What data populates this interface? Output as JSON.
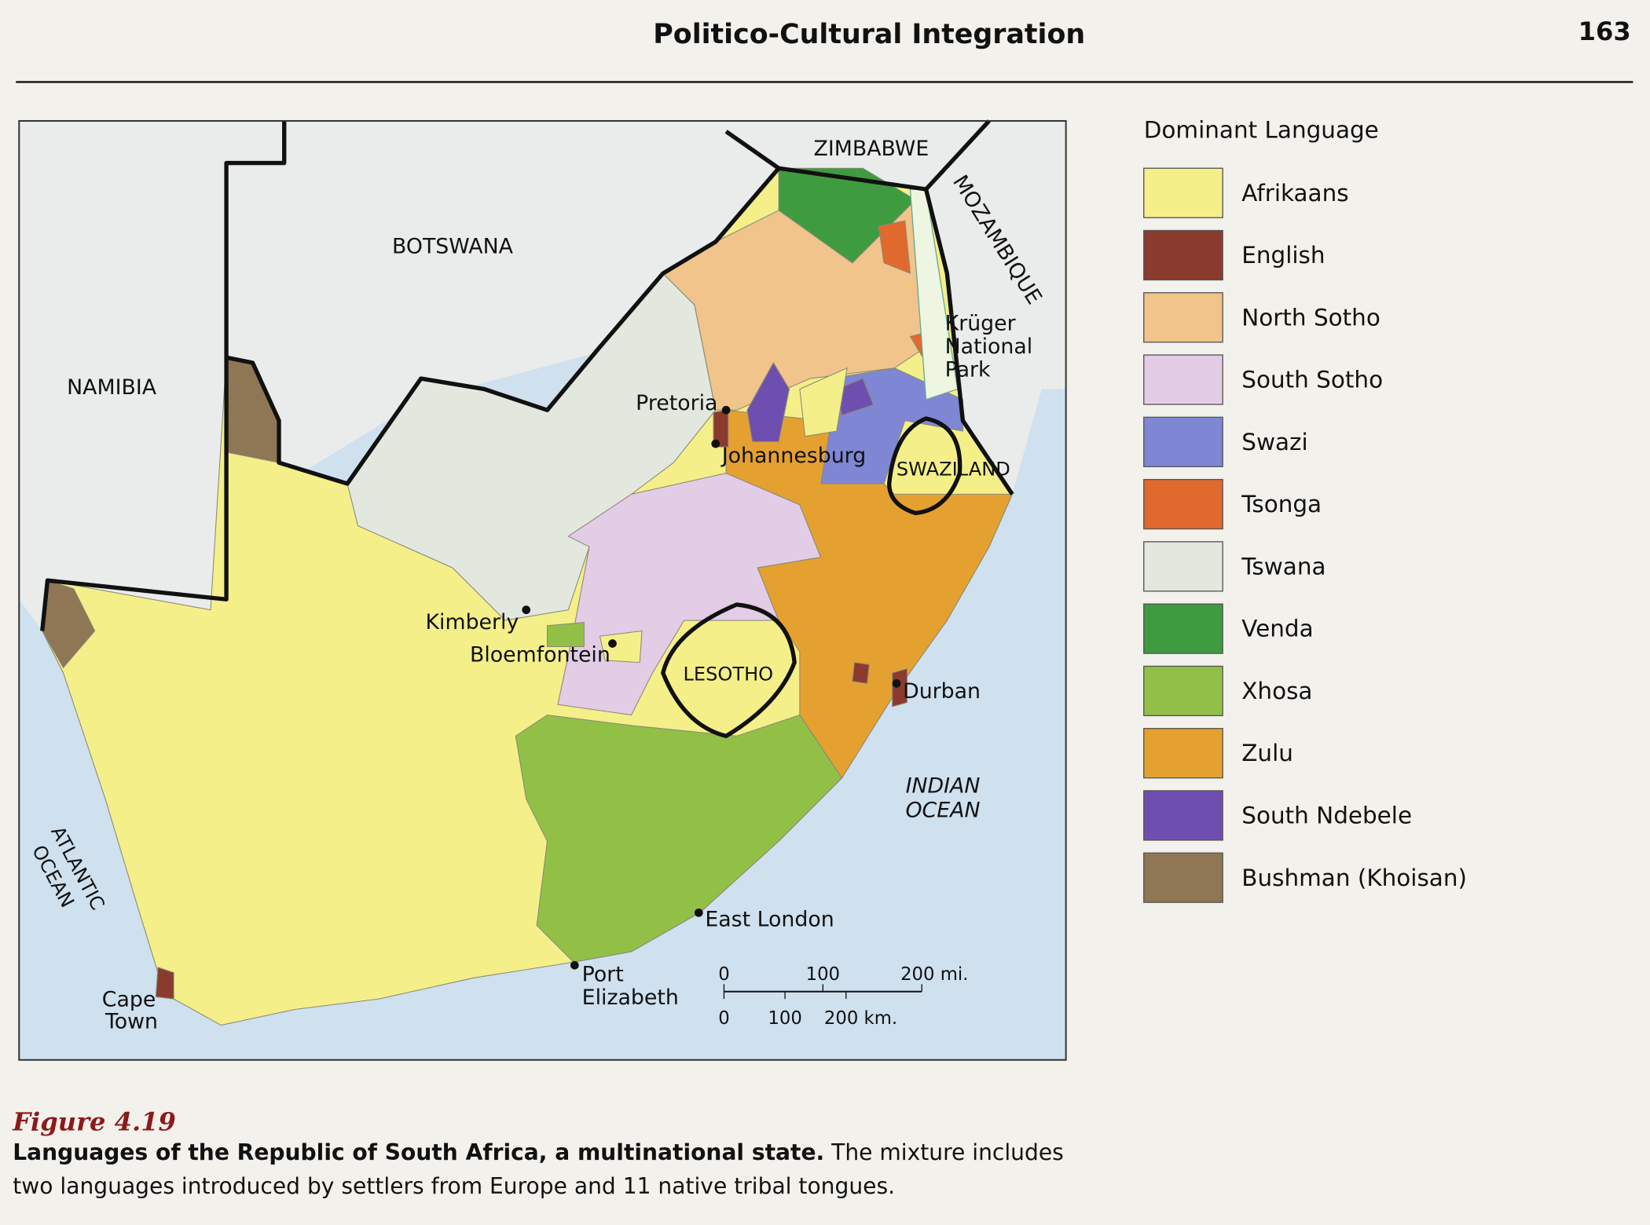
{
  "header": {
    "title": "Politico-Cultural Integration",
    "page": "163"
  },
  "map": {
    "countries": {
      "zimbabwe": "ZIMBABWE",
      "botswana": "BOTSWANA",
      "namibia": "NAMIBIA",
      "mozambique": "MOZAMBIQUE",
      "swaziland": "SWAZILAND",
      "lesotho": "LESOTHO"
    },
    "oceans": {
      "indian": [
        "INDIAN",
        "OCEAN"
      ],
      "atlantic": [
        "ATLANTIC",
        "OCEAN"
      ]
    },
    "places": {
      "pretoria": "Pretoria",
      "johannesburg": "Johannesburg",
      "kimberly": "Kimberly",
      "bloemfontein": "Bloemfontein",
      "durban": "Durban",
      "east_london": "East London",
      "port_elizabeth": [
        "Port",
        "Elizabeth"
      ],
      "cape_town": [
        "Cape",
        "Town"
      ],
      "kruger": [
        "Krüger",
        "National",
        "Park"
      ]
    },
    "scale": {
      "mi": [
        "0",
        "100",
        "200 mi."
      ],
      "km": [
        "0",
        "100",
        "200 km."
      ]
    }
  },
  "legend": {
    "title": "Dominant Language",
    "items": [
      {
        "name": "Afrikaans",
        "color": "#f4ef88"
      },
      {
        "name": "English",
        "color": "#8b3a2e"
      },
      {
        "name": "North Sotho",
        "color": "#f0c48a"
      },
      {
        "name": "South Sotho",
        "color": "#e3cce6"
      },
      {
        "name": "Swazi",
        "color": "#7f86d4"
      },
      {
        "name": "Tsonga",
        "color": "#e0692e"
      },
      {
        "name": "Tswana",
        "color": "#e2e8de"
      },
      {
        "name": "Venda",
        "color": "#3f9b3f"
      },
      {
        "name": "Xhosa",
        "color": "#92c046"
      },
      {
        "name": "Zulu",
        "color": "#e5a12f"
      },
      {
        "name": "South Ndebele",
        "color": "#6e4fb0"
      },
      {
        "name": "Bushman (Khoisan)",
        "color": "#8f7654"
      }
    ]
  },
  "figure": {
    "label": "Figure 4.19",
    "caption_bold": "Languages of the Republic of South Africa, a multinational state.",
    "caption": "The mixture includes two languages introduced by settlers from Europe and 11 native tribal tongues."
  }
}
